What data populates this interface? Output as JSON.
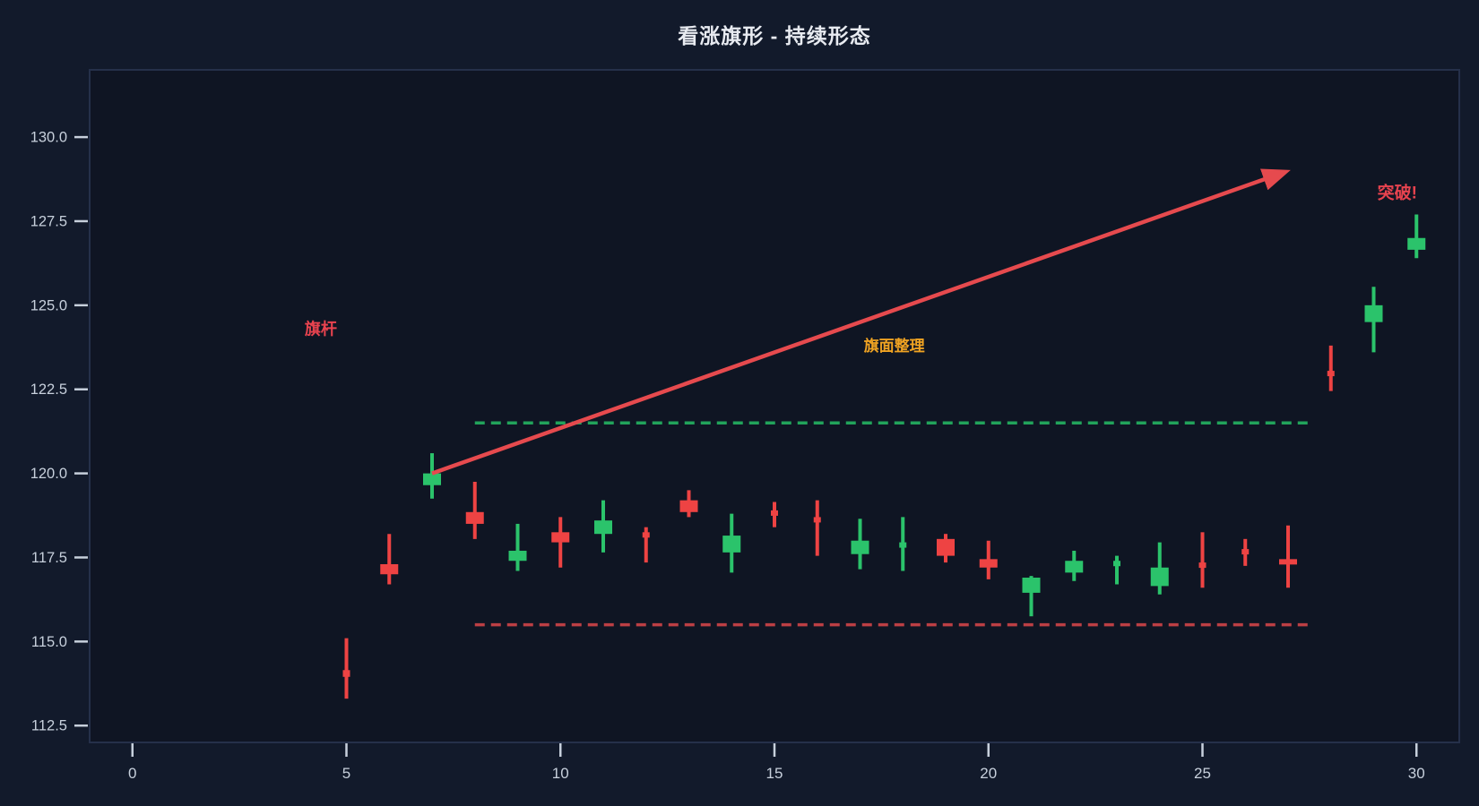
{
  "title": "看涨旗形 - 持续形态",
  "colors": {
    "background": "#121a2b",
    "plot_background": "#0f1523",
    "plot_border": "#25304a",
    "tick_mark": "#c7d0dc",
    "tick_label": "#c7d0dc",
    "title_text": "#e8ebf1",
    "up_candle": "#2bc36b",
    "down_candle": "#ee4343",
    "trend_arrow": "#e64a4e",
    "resistance_line": "#22a35b",
    "support_line": "#bc3f44",
    "flagpole_label": "#e8434f",
    "flag_label": "#f0a322",
    "breakout_label": "#e8434f"
  },
  "chart_data": {
    "type": "candlestick",
    "title": "看涨旗形 - 持续形态",
    "xlabel": "",
    "ylabel": "",
    "xlim": [
      -1,
      31
    ],
    "ylim": [
      112,
      132
    ],
    "grid": false,
    "x_ticks": [
      0,
      5,
      10,
      15,
      20,
      25,
      30
    ],
    "y_ticks": [
      112.5,
      115.0,
      117.5,
      120.0,
      122.5,
      125.0,
      127.5,
      130.0
    ],
    "candles": [
      {
        "x": 5,
        "o": 114.15,
        "h": 115.1,
        "l": 113.3,
        "c": 113.95,
        "narrow": true
      },
      {
        "x": 6,
        "o": 117.3,
        "h": 118.2,
        "l": 116.7,
        "c": 117.0
      },
      {
        "x": 7,
        "o": 119.65,
        "h": 120.6,
        "l": 119.25,
        "c": 120.0
      },
      {
        "x": 8,
        "o": 118.85,
        "h": 119.75,
        "l": 118.05,
        "c": 118.5
      },
      {
        "x": 9,
        "o": 117.4,
        "h": 118.5,
        "l": 117.1,
        "c": 117.7
      },
      {
        "x": 10,
        "o": 118.25,
        "h": 118.7,
        "l": 117.2,
        "c": 117.95
      },
      {
        "x": 11,
        "o": 118.2,
        "h": 119.2,
        "l": 117.65,
        "c": 118.6
      },
      {
        "x": 12,
        "o": 118.25,
        "h": 118.4,
        "l": 117.35,
        "c": 118.15,
        "narrow": true
      },
      {
        "x": 13,
        "o": 119.2,
        "h": 119.5,
        "l": 118.7,
        "c": 118.85
      },
      {
        "x": 14,
        "o": 117.65,
        "h": 118.8,
        "l": 117.05,
        "c": 118.15
      },
      {
        "x": 15,
        "o": 118.9,
        "h": 119.15,
        "l": 118.4,
        "c": 118.85,
        "narrow": true
      },
      {
        "x": 16,
        "o": 118.7,
        "h": 119.2,
        "l": 117.55,
        "c": 118.6,
        "narrow": true
      },
      {
        "x": 17,
        "o": 117.6,
        "h": 118.65,
        "l": 117.15,
        "c": 118.0
      },
      {
        "x": 18,
        "o": 117.85,
        "h": 118.7,
        "l": 117.1,
        "c": 117.95,
        "narrow": true
      },
      {
        "x": 19,
        "o": 118.05,
        "h": 118.2,
        "l": 117.35,
        "c": 117.55
      },
      {
        "x": 20,
        "o": 117.45,
        "h": 118.0,
        "l": 116.85,
        "c": 117.2
      },
      {
        "x": 21,
        "o": 116.45,
        "h": 116.95,
        "l": 115.75,
        "c": 116.9
      },
      {
        "x": 22,
        "o": 117.05,
        "h": 117.7,
        "l": 116.8,
        "c": 117.4
      },
      {
        "x": 23,
        "o": 117.3,
        "h": 117.55,
        "l": 116.7,
        "c": 117.4,
        "narrow": true
      },
      {
        "x": 24,
        "o": 116.65,
        "h": 117.95,
        "l": 116.4,
        "c": 117.2
      },
      {
        "x": 25,
        "o": 117.35,
        "h": 118.25,
        "l": 116.6,
        "c": 117.3,
        "narrow": true
      },
      {
        "x": 26,
        "o": 117.75,
        "h": 118.05,
        "l": 117.25,
        "c": 117.65,
        "narrow": true
      },
      {
        "x": 27,
        "o": 117.45,
        "h": 118.45,
        "l": 116.6,
        "c": 117.3
      },
      {
        "x": 28,
        "o": 123.05,
        "h": 123.8,
        "l": 122.45,
        "c": 123.0,
        "narrow": true
      },
      {
        "x": 29,
        "o": 124.5,
        "h": 125.55,
        "l": 123.6,
        "c": 125.0
      },
      {
        "x": 30,
        "o": 126.65,
        "h": 127.7,
        "l": 126.4,
        "c": 127.0
      }
    ],
    "lines": [
      {
        "name": "flag-resistance",
        "y": 121.5,
        "x1": 8,
        "x2": 27.5,
        "style": "dashed",
        "color_key": "resistance_line"
      },
      {
        "name": "flag-support",
        "y": 115.5,
        "x1": 8,
        "x2": 27.5,
        "style": "dashed",
        "color_key": "support_line"
      }
    ],
    "arrow": {
      "x1": 7.0,
      "y1": 120.0,
      "x2": 26.9,
      "y2": 128.95,
      "color_key": "trend_arrow"
    },
    "annotations": [
      {
        "name": "flagpole-label",
        "text": "旗杆",
        "x": 4.4,
        "y": 124.3,
        "size": 18,
        "color_key": "flagpole_label"
      },
      {
        "name": "flag-label",
        "text": "旗面整理",
        "x": 17.8,
        "y": 123.8,
        "size": 17,
        "color_key": "flag_label"
      },
      {
        "name": "breakout-label",
        "text": "突破!",
        "x": 29.55,
        "y": 128.35,
        "size": 19,
        "color_key": "breakout_label"
      }
    ],
    "legend": null
  }
}
